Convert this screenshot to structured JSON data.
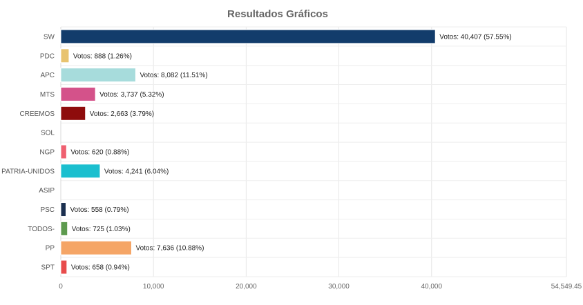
{
  "chart_data": {
    "type": "bar",
    "orientation": "horizontal",
    "title": "Resultados Gráficos",
    "xlabel": "",
    "ylabel": "",
    "categories": [
      "SW",
      "PDC",
      "APC",
      "MTS",
      "CREEMOS",
      "SOL",
      "NGP",
      "PATRIA-UNIDOS",
      "ASIP",
      "PSC",
      "TODOS-",
      "PP",
      "SPT"
    ],
    "values": [
      40407,
      888,
      8082,
      3737,
      2663,
      0,
      620,
      4241,
      0,
      558,
      725,
      7636,
      658
    ],
    "data_labels": [
      "Votos: 40,407 (57.55%)",
      "Votos: 888 (1.26%)",
      "Votos: 8,082 (11.51%)",
      "Votos: 3,737 (5.32%)",
      "Votos: 2,663 (3.79%)",
      "",
      "Votos: 620 (0.88%)",
      "Votos: 4,241 (6.04%)",
      "",
      "Votos: 558 (0.79%)",
      "Votos: 725 (1.03%)",
      "Votos: 7,636 (10.88%)",
      "Votos: 658 (0.94%)"
    ],
    "colors": [
      "#123c6b",
      "#e8c36f",
      "#a7dcdc",
      "#d4528a",
      "#8e0c0c",
      "#cccccc",
      "#ef6070",
      "#1bbfcf",
      "#cccccc",
      "#1b2f4f",
      "#5d9a4e",
      "#f5a566",
      "#e84c4c"
    ],
    "xlim": [
      0,
      54549.45
    ],
    "xticks": [
      0,
      10000,
      20000,
      30000,
      40000,
      54549.45
    ],
    "xtick_labels": [
      "0",
      "10,000",
      "20,000",
      "30,000",
      "40,000",
      "54,549.45"
    ],
    "grid": true,
    "legend": "none"
  }
}
